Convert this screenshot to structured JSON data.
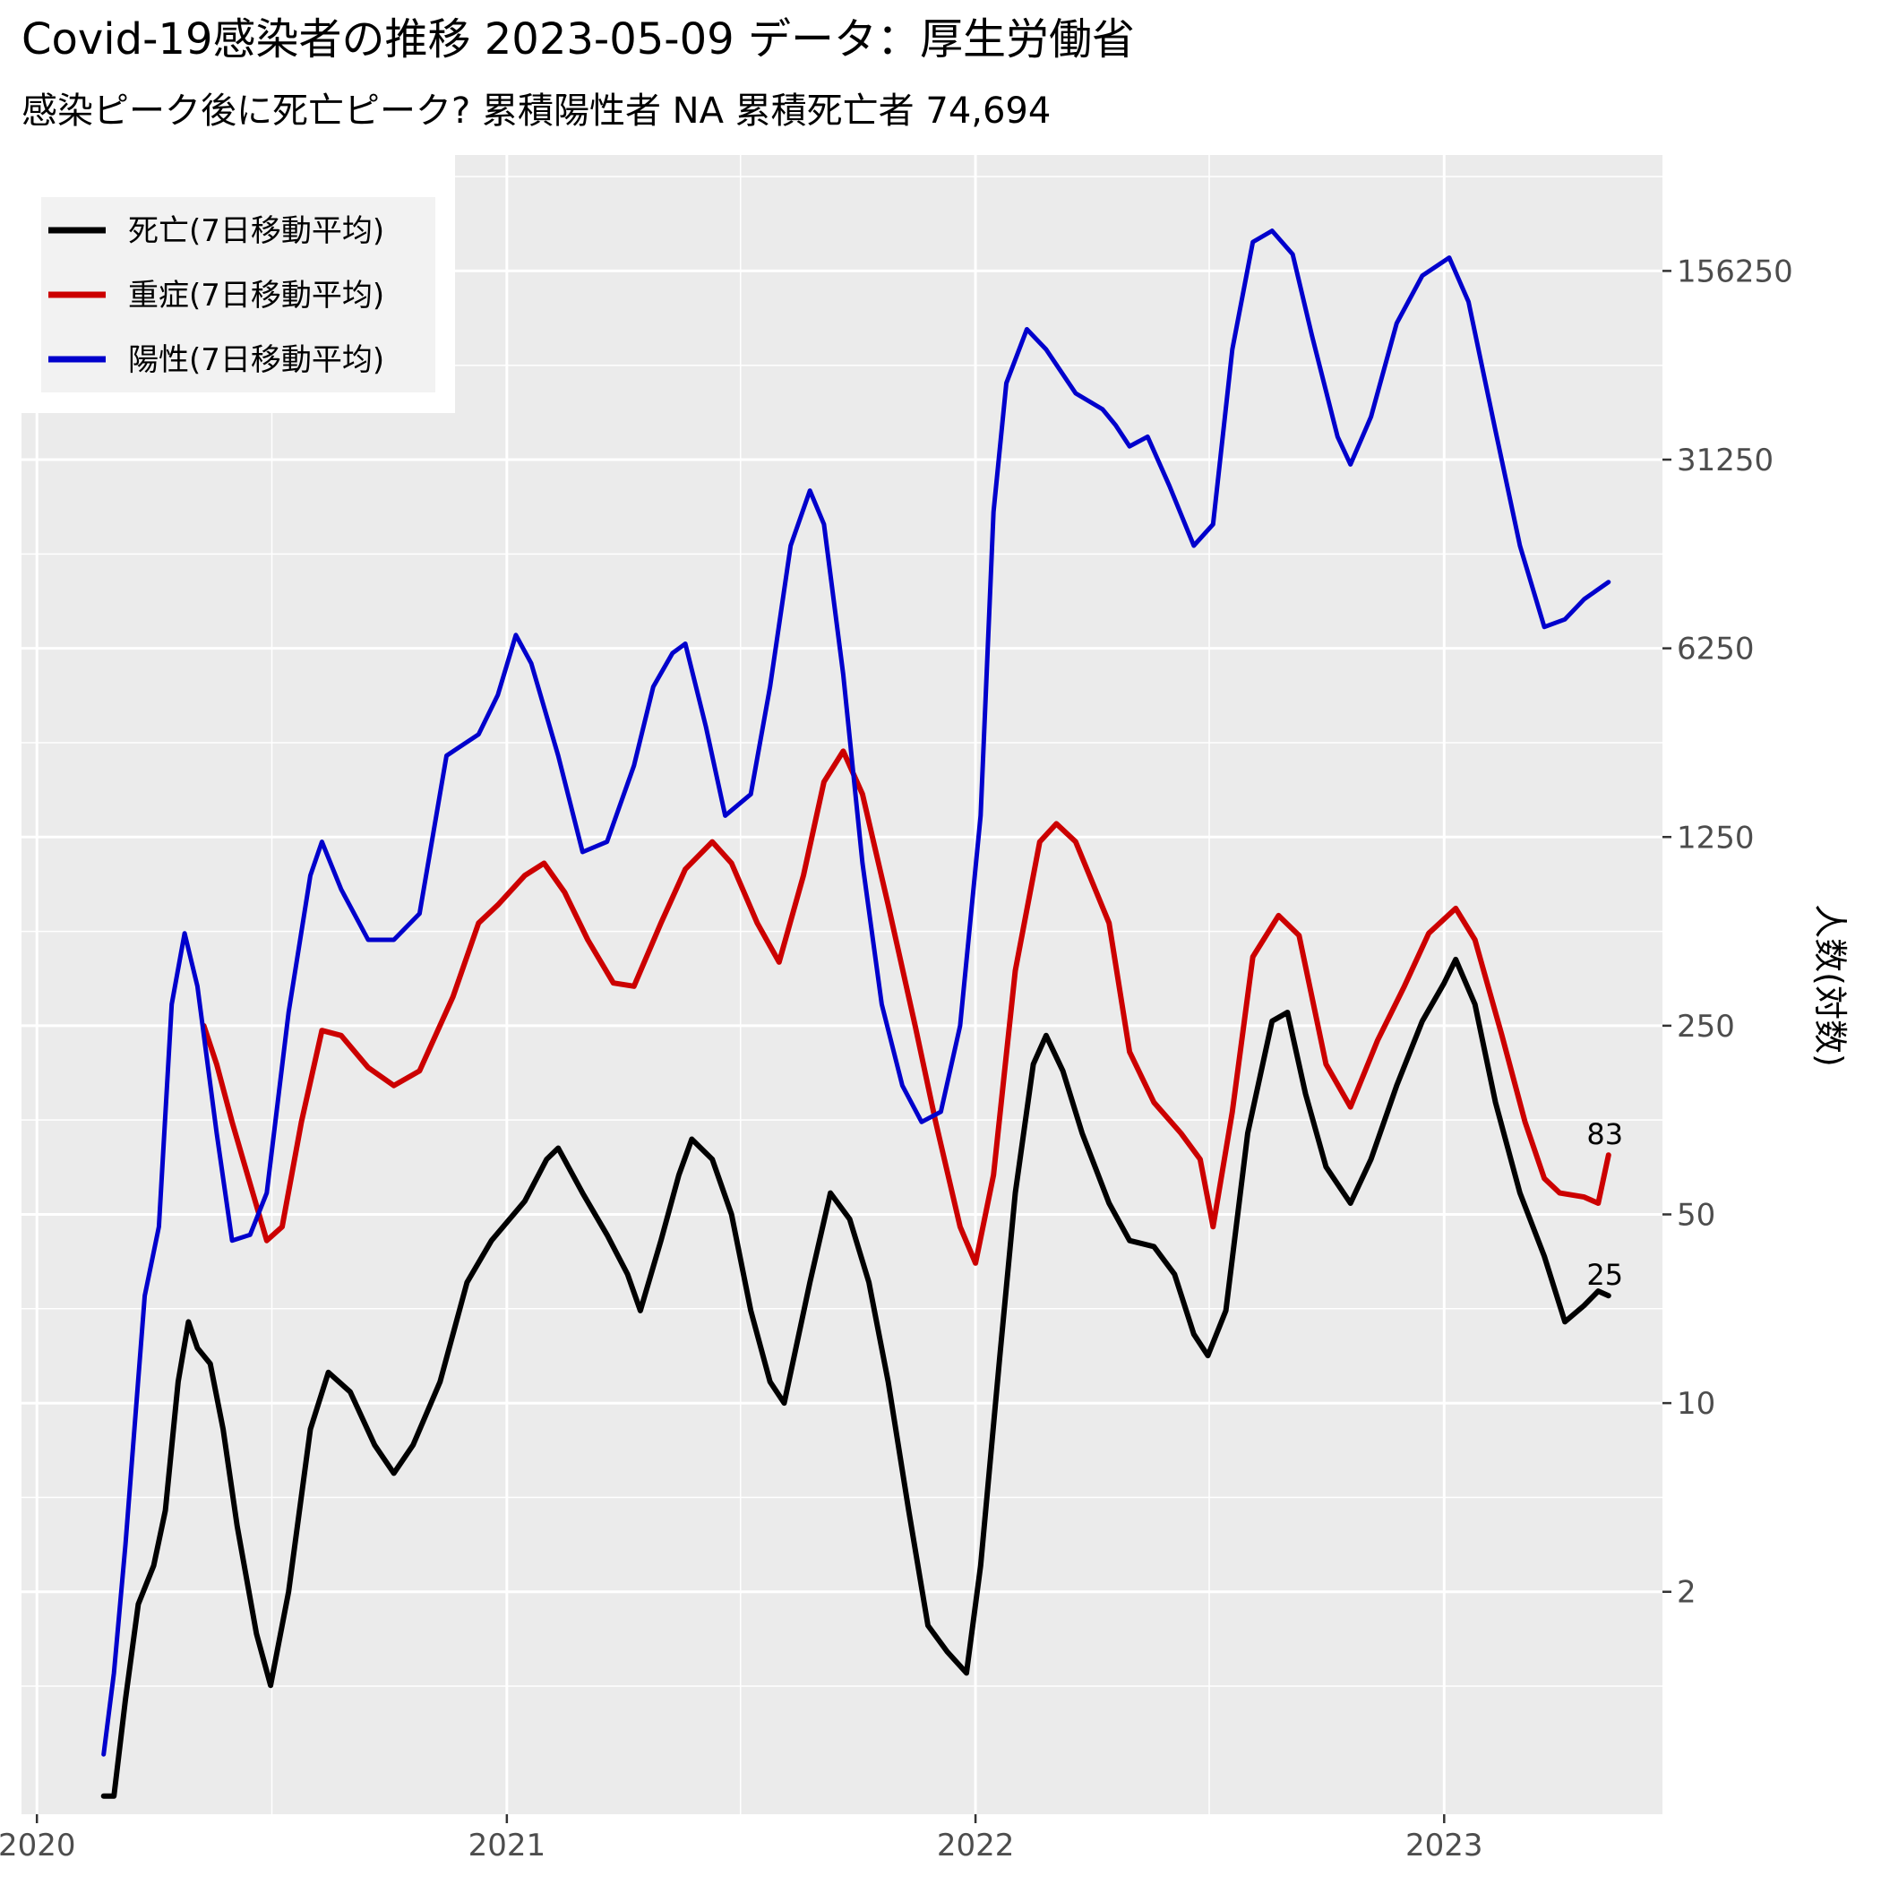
{
  "chart_data": {
    "type": "line",
    "title": "Covid-19感染者の推移 2023-05-09 データ：厚生労働省",
    "subtitle": "感染ピーク後に死亡ピーク? 累積陽性者 NA 累積死亡者 74,694",
    "ylabel": "人数(対数)",
    "xlabel": "",
    "y_scale": "log",
    "y_ticks": [
      2,
      10,
      50,
      250,
      1250,
      6250,
      31250,
      156250
    ],
    "y_tick_labels": [
      "2",
      "10",
      "50",
      "250",
      "1250",
      "6250",
      "31250",
      "156250"
    ],
    "x_ticks": [
      "2020-01-01",
      "2021-01-01",
      "2022-01-01",
      "2023-01-01"
    ],
    "x_tick_labels": [
      "2020",
      "2021",
      "2022",
      "2023"
    ],
    "xlim": [
      "2019-12-20",
      "2023-06-20"
    ],
    "ylim": [
      0.3,
      420000
    ],
    "grid": true,
    "legend_position": "top-left",
    "series": [
      {
        "name": "死亡(7日移動平均)",
        "color": "#000000",
        "points": [
          [
            "2020-02-22",
            0.35
          ],
          [
            "2020-03-01",
            0.35
          ],
          [
            "2020-03-10",
            0.8
          ],
          [
            "2020-03-20",
            1.8
          ],
          [
            "2020-04-01",
            2.5
          ],
          [
            "2020-04-10",
            4
          ],
          [
            "2020-04-20",
            12
          ],
          [
            "2020-04-28",
            20
          ],
          [
            "2020-05-05",
            16
          ],
          [
            "2020-05-15",
            14
          ],
          [
            "2020-05-25",
            8
          ],
          [
            "2020-06-05",
            3.5
          ],
          [
            "2020-06-20",
            1.4
          ],
          [
            "2020-07-01",
            0.9
          ],
          [
            "2020-07-15",
            2
          ],
          [
            "2020-08-01",
            8
          ],
          [
            "2020-08-15",
            13
          ],
          [
            "2020-09-01",
            11
          ],
          [
            "2020-09-20",
            7
          ],
          [
            "2020-10-05",
            5.5
          ],
          [
            "2020-10-20",
            7
          ],
          [
            "2020-11-10",
            12
          ],
          [
            "2020-12-01",
            28
          ],
          [
            "2020-12-20",
            40
          ],
          [
            "2021-01-15",
            56
          ],
          [
            "2021-02-01",
            80
          ],
          [
            "2021-02-10",
            88
          ],
          [
            "2021-03-01",
            60
          ],
          [
            "2021-03-20",
            42
          ],
          [
            "2021-04-05",
            30
          ],
          [
            "2021-04-15",
            22
          ],
          [
            "2021-05-01",
            40
          ],
          [
            "2021-05-15",
            70
          ],
          [
            "2021-05-25",
            95
          ],
          [
            "2021-06-10",
            80
          ],
          [
            "2021-06-25",
            50
          ],
          [
            "2021-07-10",
            22
          ],
          [
            "2021-07-25",
            12
          ],
          [
            "2021-08-05",
            10
          ],
          [
            "2021-08-25",
            28
          ],
          [
            "2021-09-10",
            60
          ],
          [
            "2021-09-25",
            48
          ],
          [
            "2021-10-10",
            28
          ],
          [
            "2021-10-25",
            12
          ],
          [
            "2021-11-10",
            4
          ],
          [
            "2021-11-25",
            1.5
          ],
          [
            "2021-12-10",
            1.2
          ],
          [
            "2021-12-25",
            1.0
          ],
          [
            "2022-01-05",
            2.5
          ],
          [
            "2022-01-20",
            15
          ],
          [
            "2022-02-01",
            60
          ],
          [
            "2022-02-15",
            180
          ],
          [
            "2022-02-25",
            230
          ],
          [
            "2022-03-10",
            170
          ],
          [
            "2022-03-25",
            100
          ],
          [
            "2022-04-15",
            55
          ],
          [
            "2022-05-01",
            40
          ],
          [
            "2022-05-20",
            38
          ],
          [
            "2022-06-05",
            30
          ],
          [
            "2022-06-20",
            18
          ],
          [
            "2022-07-01",
            15
          ],
          [
            "2022-07-15",
            22
          ],
          [
            "2022-08-01",
            100
          ],
          [
            "2022-08-20",
            260
          ],
          [
            "2022-09-01",
            280
          ],
          [
            "2022-09-15",
            140
          ],
          [
            "2022-10-01",
            75
          ],
          [
            "2022-10-20",
            55
          ],
          [
            "2022-11-05",
            80
          ],
          [
            "2022-11-25",
            150
          ],
          [
            "2022-12-15",
            260
          ],
          [
            "2023-01-01",
            360
          ],
          [
            "2023-01-10",
            440
          ],
          [
            "2023-01-25",
            300
          ],
          [
            "2023-02-10",
            130
          ],
          [
            "2023-03-01",
            60
          ],
          [
            "2023-03-20",
            35
          ],
          [
            "2023-04-05",
            20
          ],
          [
            "2023-04-20",
            23
          ],
          [
            "2023-05-01",
            26
          ],
          [
            "2023-05-09",
            25
          ]
        ],
        "end_label": "25"
      },
      {
        "name": "重症(7日移動平均)",
        "color": "#cc0000",
        "points": [
          [
            "2020-05-10",
            250
          ],
          [
            "2020-05-20",
            180
          ],
          [
            "2020-06-01",
            110
          ],
          [
            "2020-06-15",
            65
          ],
          [
            "2020-06-28",
            40
          ],
          [
            "2020-07-10",
            45
          ],
          [
            "2020-07-25",
            110
          ],
          [
            "2020-08-10",
            240
          ],
          [
            "2020-08-25",
            230
          ],
          [
            "2020-09-15",
            175
          ],
          [
            "2020-10-05",
            150
          ],
          [
            "2020-10-25",
            170
          ],
          [
            "2020-11-20",
            320
          ],
          [
            "2020-12-10",
            600
          ],
          [
            "2020-12-25",
            700
          ],
          [
            "2021-01-15",
            900
          ],
          [
            "2021-01-30",
            1000
          ],
          [
            "2021-02-15",
            780
          ],
          [
            "2021-03-05",
            520
          ],
          [
            "2021-03-25",
            360
          ],
          [
            "2021-04-10",
            350
          ],
          [
            "2021-05-01",
            600
          ],
          [
            "2021-05-20",
            950
          ],
          [
            "2021-06-10",
            1200
          ],
          [
            "2021-06-25",
            1000
          ],
          [
            "2021-07-15",
            600
          ],
          [
            "2021-08-01",
            430
          ],
          [
            "2021-08-20",
            900
          ],
          [
            "2021-09-05",
            2000
          ],
          [
            "2021-09-20",
            2600
          ],
          [
            "2021-10-05",
            1800
          ],
          [
            "2021-10-25",
            700
          ],
          [
            "2021-11-15",
            250
          ],
          [
            "2021-12-01",
            110
          ],
          [
            "2021-12-20",
            45
          ],
          [
            "2022-01-01",
            33
          ],
          [
            "2022-01-15",
            70
          ],
          [
            "2022-02-01",
            400
          ],
          [
            "2022-02-20",
            1200
          ],
          [
            "2022-03-05",
            1400
          ],
          [
            "2022-03-20",
            1200
          ],
          [
            "2022-04-15",
            600
          ],
          [
            "2022-05-01",
            200
          ],
          [
            "2022-05-20",
            130
          ],
          [
            "2022-06-10",
            100
          ],
          [
            "2022-06-25",
            80
          ],
          [
            "2022-07-05",
            45
          ],
          [
            "2022-07-20",
            120
          ],
          [
            "2022-08-05",
            450
          ],
          [
            "2022-08-25",
            640
          ],
          [
            "2022-09-10",
            540
          ],
          [
            "2022-10-01",
            180
          ],
          [
            "2022-10-20",
            125
          ],
          [
            "2022-11-10",
            220
          ],
          [
            "2022-12-01",
            350
          ],
          [
            "2022-12-20",
            550
          ],
          [
            "2023-01-10",
            680
          ],
          [
            "2023-01-25",
            520
          ],
          [
            "2023-02-15",
            230
          ],
          [
            "2023-03-05",
            110
          ],
          [
            "2023-03-20",
            68
          ],
          [
            "2023-04-01",
            60
          ],
          [
            "2023-04-20",
            58
          ],
          [
            "2023-05-01",
            55
          ],
          [
            "2023-05-09",
            83
          ]
        ],
        "end_label": "83"
      },
      {
        "name": "陽性(7日移動平均)",
        "color": "#0000cc",
        "points": [
          [
            "2020-02-22",
            0.5
          ],
          [
            "2020-03-01",
            1.0
          ],
          [
            "2020-03-10",
            3.0
          ],
          [
            "2020-03-25",
            25
          ],
          [
            "2020-04-05",
            45
          ],
          [
            "2020-04-15",
            300
          ],
          [
            "2020-04-25",
            550
          ],
          [
            "2020-05-05",
            350
          ],
          [
            "2020-05-20",
            100
          ],
          [
            "2020-06-01",
            40
          ],
          [
            "2020-06-15",
            42
          ],
          [
            "2020-06-28",
            60
          ],
          [
            "2020-07-15",
            280
          ],
          [
            "2020-08-01",
            900
          ],
          [
            "2020-08-10",
            1200
          ],
          [
            "2020-08-25",
            800
          ],
          [
            "2020-09-15",
            520
          ],
          [
            "2020-10-05",
            520
          ],
          [
            "2020-10-25",
            650
          ],
          [
            "2020-11-15",
            2500
          ],
          [
            "2020-12-10",
            3000
          ],
          [
            "2020-12-25",
            4200
          ],
          [
            "2021-01-08",
            7000
          ],
          [
            "2021-01-20",
            5500
          ],
          [
            "2021-02-10",
            2500
          ],
          [
            "2021-03-01",
            1100
          ],
          [
            "2021-03-20",
            1200
          ],
          [
            "2021-04-10",
            2300
          ],
          [
            "2021-04-25",
            4500
          ],
          [
            "2021-05-10",
            6000
          ],
          [
            "2021-05-20",
            6500
          ],
          [
            "2021-06-05",
            3200
          ],
          [
            "2021-06-20",
            1500
          ],
          [
            "2021-07-10",
            1800
          ],
          [
            "2021-07-25",
            4500
          ],
          [
            "2021-08-10",
            15000
          ],
          [
            "2021-08-25",
            24000
          ],
          [
            "2021-09-05",
            18000
          ],
          [
            "2021-09-20",
            5000
          ],
          [
            "2021-10-05",
            1000
          ],
          [
            "2021-10-20",
            300
          ],
          [
            "2021-11-05",
            150
          ],
          [
            "2021-11-20",
            110
          ],
          [
            "2021-12-05",
            120
          ],
          [
            "2021-12-20",
            250
          ],
          [
            "2022-01-05",
            1500
          ],
          [
            "2022-01-15",
            20000
          ],
          [
            "2022-01-25",
            60000
          ],
          [
            "2022-02-10",
            95000
          ],
          [
            "2022-02-25",
            80000
          ],
          [
            "2022-03-20",
            55000
          ],
          [
            "2022-04-10",
            48000
          ],
          [
            "2022-04-20",
            42000
          ],
          [
            "2022-05-01",
            35000
          ],
          [
            "2022-05-15",
            38000
          ],
          [
            "2022-06-01",
            25000
          ],
          [
            "2022-06-20",
            15000
          ],
          [
            "2022-07-05",
            18000
          ],
          [
            "2022-07-20",
            80000
          ],
          [
            "2022-08-05",
            200000
          ],
          [
            "2022-08-20",
            220000
          ],
          [
            "2022-09-05",
            180000
          ],
          [
            "2022-09-20",
            90000
          ],
          [
            "2022-10-10",
            38000
          ],
          [
            "2022-10-20",
            30000
          ],
          [
            "2022-11-05",
            45000
          ],
          [
            "2022-11-25",
            100000
          ],
          [
            "2022-12-15",
            150000
          ],
          [
            "2023-01-05",
            175000
          ],
          [
            "2023-01-20",
            120000
          ],
          [
            "2023-02-10",
            40000
          ],
          [
            "2023-03-01",
            15000
          ],
          [
            "2023-03-20",
            7500
          ],
          [
            "2023-04-05",
            8000
          ],
          [
            "2023-04-20",
            9500
          ],
          [
            "2023-05-09",
            11000
          ]
        ]
      }
    ]
  }
}
